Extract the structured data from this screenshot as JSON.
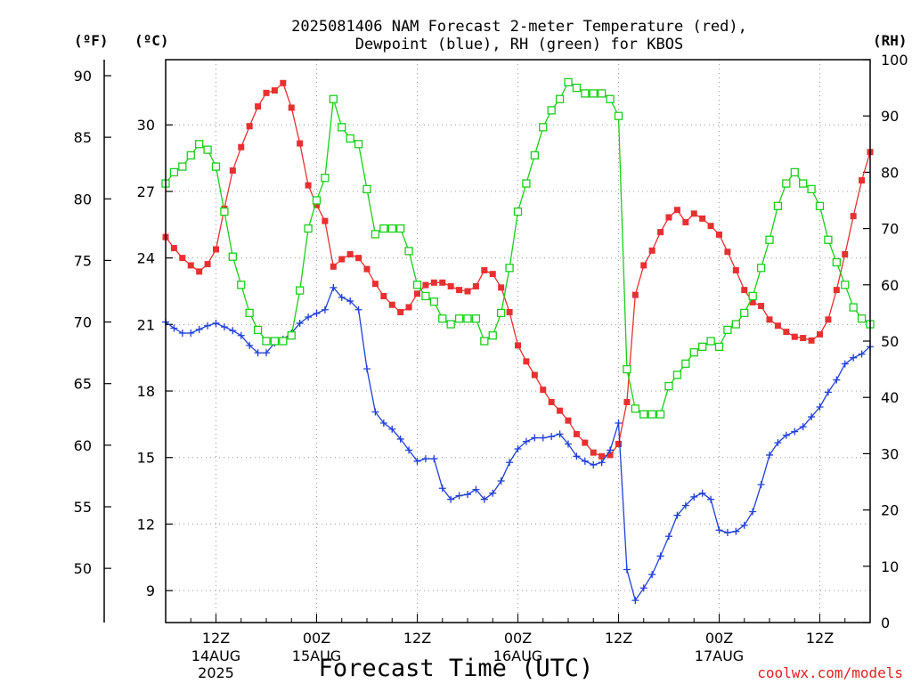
{
  "title": {
    "line1": "2025081406 NAM Forecast 2-meter Temperature (red),",
    "line2": "Dewpoint (blue), RH (green) for KBOS"
  },
  "units": {
    "fahrenheit": "(ºF)",
    "celsius": "(ºC)",
    "rh": "(RH)"
  },
  "xaxis_title": "Forecast Time (UTC)",
  "credit": "coolwx.com/models",
  "colors": {
    "temperature": "#e83030",
    "dewpoint": "#2040d8",
    "rh": "#18d018",
    "grid": "#999999",
    "credit": "#e02020"
  },
  "chart_data": {
    "type": "line",
    "grid": true,
    "x_hours_from_start": [
      0,
      1,
      2,
      3,
      4,
      5,
      6,
      7,
      8,
      9,
      10,
      11,
      12,
      13,
      14,
      15,
      16,
      17,
      18,
      19,
      20,
      21,
      22,
      23,
      24,
      25,
      26,
      27,
      28,
      29,
      30,
      31,
      32,
      33,
      34,
      35,
      36,
      37,
      38,
      39,
      40,
      41,
      42,
      43,
      44,
      45,
      46,
      47,
      48,
      49,
      50,
      51,
      52,
      53,
      54,
      55,
      56,
      57,
      58,
      59,
      60,
      61,
      62,
      63,
      64,
      65,
      66,
      67,
      68,
      69,
      70,
      71,
      72,
      73,
      74,
      75,
      76,
      77,
      78,
      79,
      80,
      81,
      82,
      83,
      84
    ],
    "x_ticks": [
      {
        "hour": 6,
        "label": "12Z",
        "sublabels": [
          "14AUG",
          "2025"
        ]
      },
      {
        "hour": 18,
        "label": "00Z",
        "sublabels": [
          "15AUG"
        ]
      },
      {
        "hour": 30,
        "label": "12Z",
        "sublabels": []
      },
      {
        "hour": 42,
        "label": "00Z",
        "sublabels": [
          "16AUG"
        ]
      },
      {
        "hour": 54,
        "label": "12Z",
        "sublabels": []
      },
      {
        "hour": 66,
        "label": "00Z",
        "sublabels": [
          "17AUG"
        ]
      },
      {
        "hour": 78,
        "label": "12Z",
        "sublabels": []
      }
    ],
    "xlim": [
      0,
      84
    ],
    "y_temperature_f": {
      "ticks": [
        50,
        55,
        60,
        65,
        70,
        75,
        80,
        85,
        90
      ],
      "range": [
        45.6,
        91.3
      ]
    },
    "y_temperature_c": {
      "ticks": [
        9,
        12,
        15,
        18,
        21,
        24,
        27,
        30
      ],
      "range": [
        7.56,
        32.94
      ]
    },
    "y_rh": {
      "ticks": [
        0,
        10,
        20,
        30,
        40,
        50,
        60,
        70,
        80,
        90,
        100
      ],
      "range": [
        0,
        100
      ]
    },
    "series": [
      {
        "name": "Temperature",
        "unit": "F",
        "values": [
          76.9,
          76.0,
          75.2,
          74.6,
          74.1,
          74.7,
          75.9,
          79.2,
          82.3,
          84.2,
          85.9,
          87.5,
          88.6,
          88.8,
          89.4,
          87.4,
          84.5,
          81.1,
          79.5,
          78.2,
          74.5,
          75.1,
          75.5,
          75.2,
          74.3,
          73.1,
          72.1,
          71.4,
          70.8,
          71.2,
          72.3,
          73.0,
          73.2,
          73.2,
          72.9,
          72.6,
          72.5,
          72.9,
          74.2,
          73.9,
          72.8,
          70.8,
          68.1,
          66.8,
          65.7,
          64.5,
          63.5,
          62.8,
          62.0,
          60.9,
          60.2,
          59.4,
          59.1,
          59.2,
          60.1,
          63.5,
          72.2,
          74.6,
          75.8,
          77.3,
          78.5,
          79.1,
          78.1,
          78.8,
          78.4,
          77.8,
          77.1,
          75.7,
          74.2,
          72.6,
          71.6,
          71.3,
          70.2,
          69.7,
          69.2,
          68.8,
          68.7,
          68.5,
          69.0,
          70.2,
          72.6,
          75.5,
          78.6,
          81.5,
          83.8
        ]
      },
      {
        "name": "Dewpoint",
        "unit": "F",
        "values": [
          70.0,
          69.5,
          69.1,
          69.1,
          69.4,
          69.7,
          69.9,
          69.6,
          69.3,
          68.9,
          68.1,
          67.5,
          67.5,
          68.3,
          68.6,
          69.1,
          69.9,
          70.4,
          70.7,
          71.0,
          72.8,
          72.0,
          71.7,
          71.0,
          66.2,
          62.7,
          61.8,
          61.3,
          60.5,
          59.6,
          58.7,
          58.9,
          58.9,
          56.5,
          55.6,
          55.9,
          56.0,
          56.4,
          55.6,
          56.1,
          57.1,
          58.6,
          59.7,
          60.3,
          60.6,
          60.6,
          60.7,
          60.9,
          60.1,
          59.1,
          58.7,
          58.4,
          58.6,
          59.6,
          61.8,
          49.9,
          47.4,
          48.4,
          49.5,
          51.0,
          52.6,
          54.3,
          55.1,
          55.8,
          56.1,
          55.6,
          53.1,
          52.9,
          53.0,
          53.5,
          54.6,
          56.8,
          59.2,
          60.2,
          60.8,
          61.1,
          61.5,
          62.3,
          63.1,
          64.3,
          65.3,
          66.6,
          67.1,
          67.4,
          68.0
        ]
      },
      {
        "name": "RH",
        "unit": "%",
        "values": [
          78,
          80,
          81,
          83,
          85,
          84,
          81,
          73,
          65,
          60,
          55,
          52,
          50,
          50,
          50,
          51,
          59,
          70,
          75,
          79,
          93,
          88,
          86,
          85,
          77,
          69,
          70,
          70,
          70,
          66,
          60,
          58,
          57,
          54,
          53,
          54,
          54,
          54,
          50,
          51,
          55,
          63,
          73,
          78,
          83,
          88,
          91,
          93,
          96,
          95,
          94,
          94,
          94,
          93,
          90,
          45,
          38,
          37,
          37,
          37,
          42,
          44,
          46,
          48,
          49,
          50,
          49,
          52,
          53,
          55,
          58,
          63,
          68,
          74,
          78,
          80,
          78,
          77,
          74,
          68,
          64,
          60,
          56,
          54,
          53
        ]
      }
    ]
  }
}
